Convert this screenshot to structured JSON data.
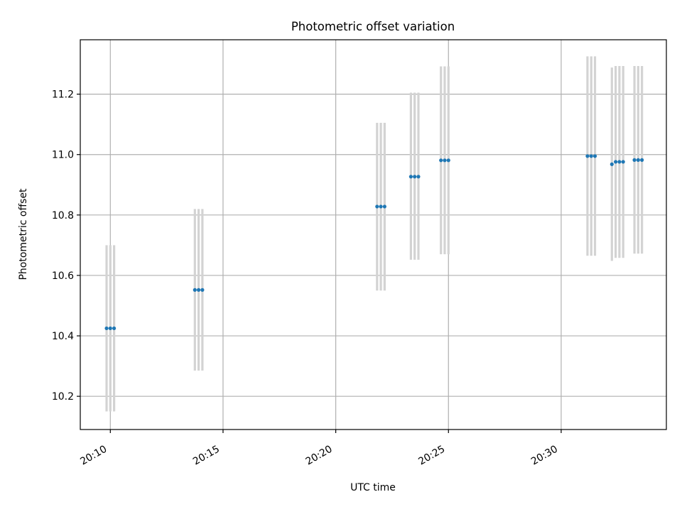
{
  "chart_data": {
    "type": "scatter",
    "title": "Photometric offset variation",
    "xlabel": "UTC time",
    "ylabel": "Photometric offset",
    "xlim": [
      "20:08:40",
      "20:34:40"
    ],
    "ylim": [
      10.09,
      11.38
    ],
    "x_ticks": [
      "20:10",
      "20:15",
      "20:20",
      "20:25",
      "20:30"
    ],
    "y_ticks": [
      "10.2",
      "10.4",
      "10.6",
      "10.8",
      "11.0",
      "11.2"
    ],
    "grid": true,
    "legend": "none",
    "colors": {
      "marker": "#1f77b4",
      "errorbar": "#d3d3d3",
      "grid": "#b0b0b0",
      "axes": "#000000"
    },
    "points": [
      {
        "time": "20:09:50",
        "y": 10.425,
        "err_low": 10.15,
        "err_high": 10.7
      },
      {
        "time": "20:10:00",
        "y": 10.425,
        "err_low": 10.15,
        "err_high": 10.7
      },
      {
        "time": "20:10:10",
        "y": 10.425,
        "err_low": 10.15,
        "err_high": 10.7
      },
      {
        "time": "20:13:45",
        "y": 10.552,
        "err_low": 10.285,
        "err_high": 10.82
      },
      {
        "time": "20:13:55",
        "y": 10.552,
        "err_low": 10.285,
        "err_high": 10.82
      },
      {
        "time": "20:14:05",
        "y": 10.552,
        "err_low": 10.285,
        "err_high": 10.82
      },
      {
        "time": "20:21:50",
        "y": 10.828,
        "err_low": 10.55,
        "err_high": 11.105
      },
      {
        "time": "20:22:00",
        "y": 10.828,
        "err_low": 10.55,
        "err_high": 11.105
      },
      {
        "time": "20:22:10",
        "y": 10.828,
        "err_low": 10.55,
        "err_high": 11.105
      },
      {
        "time": "20:23:20",
        "y": 10.927,
        "err_low": 10.652,
        "err_high": 11.205
      },
      {
        "time": "20:23:30",
        "y": 10.927,
        "err_low": 10.652,
        "err_high": 11.205
      },
      {
        "time": "20:23:40",
        "y": 10.927,
        "err_low": 10.652,
        "err_high": 11.205
      },
      {
        "time": "20:24:40",
        "y": 10.981,
        "err_low": 10.67,
        "err_high": 11.292
      },
      {
        "time": "20:24:50",
        "y": 10.981,
        "err_low": 10.67,
        "err_high": 11.292
      },
      {
        "time": "20:25:00",
        "y": 10.981,
        "err_low": 10.67,
        "err_high": 11.292
      },
      {
        "time": "20:31:10",
        "y": 10.995,
        "err_low": 10.665,
        "err_high": 11.325
      },
      {
        "time": "20:31:20",
        "y": 10.995,
        "err_low": 10.665,
        "err_high": 11.325
      },
      {
        "time": "20:31:30",
        "y": 10.995,
        "err_low": 10.665,
        "err_high": 11.325
      },
      {
        "time": "20:32:15",
        "y": 10.968,
        "err_low": 10.648,
        "err_high": 11.288
      },
      {
        "time": "20:32:25",
        "y": 10.976,
        "err_low": 10.658,
        "err_high": 11.293
      },
      {
        "time": "20:32:35",
        "y": 10.976,
        "err_low": 10.658,
        "err_high": 11.293
      },
      {
        "time": "20:32:45",
        "y": 10.976,
        "err_low": 10.658,
        "err_high": 11.293
      },
      {
        "time": "20:33:15",
        "y": 10.982,
        "err_low": 10.672,
        "err_high": 11.293
      },
      {
        "time": "20:33:25",
        "y": 10.982,
        "err_low": 10.672,
        "err_high": 11.293
      },
      {
        "time": "20:33:35",
        "y": 10.982,
        "err_low": 10.672,
        "err_high": 11.293
      }
    ]
  }
}
